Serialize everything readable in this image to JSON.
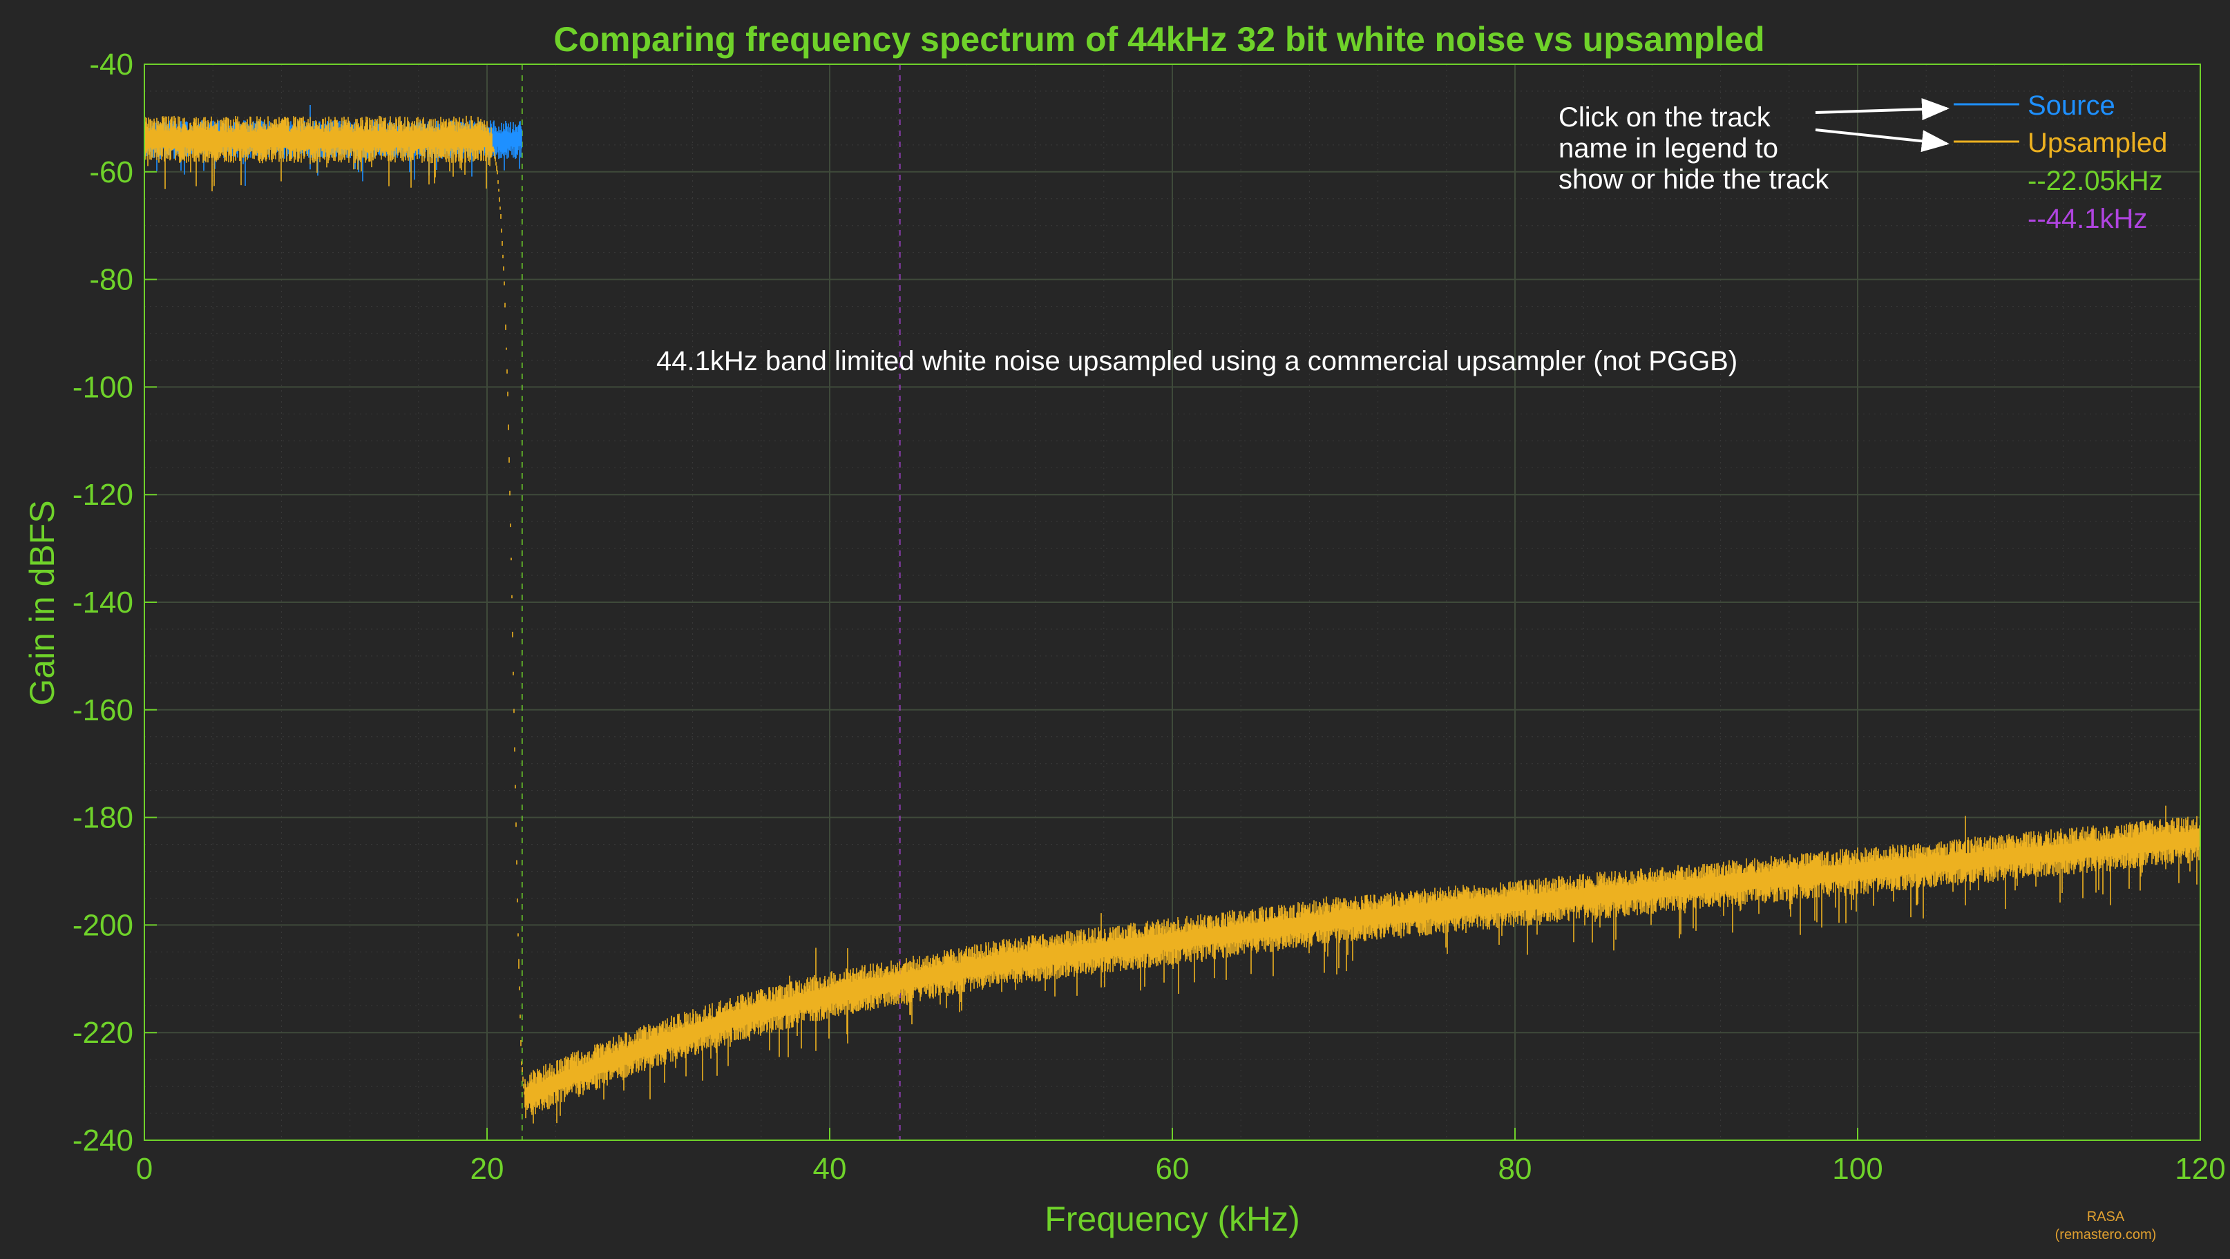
{
  "chart_data": {
    "type": "line",
    "title": "Comparing frequency spectrum of 44kHz 32 bit white noise vs upsampled",
    "xlabel": "Frequency (kHz)",
    "ylabel": "Gain in dBFS",
    "xlim": [
      0,
      120
    ],
    "ylim": [
      -240,
      -40
    ],
    "x_ticks": [
      "0",
      "20",
      "40",
      "60",
      "80",
      "100",
      "120"
    ],
    "y_ticks": [
      "-40",
      "-60",
      "-80",
      "-100",
      "-120",
      "-140",
      "-160",
      "-180",
      "-200",
      "-220",
      "-240"
    ],
    "grid": true,
    "minor_grid": true,
    "legend_position": "top-right",
    "series": [
      {
        "name": "Source",
        "color": "#1e90ff",
        "style": "noise",
        "x": [
          0,
          5,
          10,
          15,
          20,
          20.5,
          21,
          21.5,
          22.05
        ],
        "y": [
          -54,
          -54,
          -54,
          -54,
          -54,
          -54,
          -54,
          -54,
          -54
        ],
        "spread": 9
      },
      {
        "name": "Upsampled",
        "color": "#edb120",
        "style": "noise",
        "x": [
          0,
          5,
          10,
          15,
          20,
          20.4,
          20.6,
          20.8,
          21,
          21.2,
          21.4,
          21.6,
          21.8,
          22,
          22.2,
          25,
          30,
          35,
          40,
          45,
          50,
          60,
          70,
          80,
          90,
          100,
          110,
          120
        ],
        "y": [
          -54,
          -54,
          -54,
          -54,
          -54,
          -56,
          -60,
          -68,
          -80,
          -100,
          -130,
          -165,
          -200,
          -225,
          -232,
          -228,
          -222,
          -217,
          -213,
          -210,
          -207,
          -203,
          -199,
          -196,
          -193,
          -190,
          -187,
          -184
        ],
        "spread": 11
      }
    ],
    "reference_lines": [
      {
        "label": "--22.05kHz",
        "x": 22.05,
        "color": "#6fd22a"
      },
      {
        "label": "--44.1kHz",
        "x": 44.1,
        "color": "#b044e0"
      }
    ],
    "annotations": [
      "Click on the track",
      "name in legend to",
      "show or hide the track",
      "44.1kHz band limited white noise upsampled using a commercial upsampler (not PGGB)"
    ],
    "credit": [
      "RASA",
      "(remastero.com)"
    ]
  }
}
